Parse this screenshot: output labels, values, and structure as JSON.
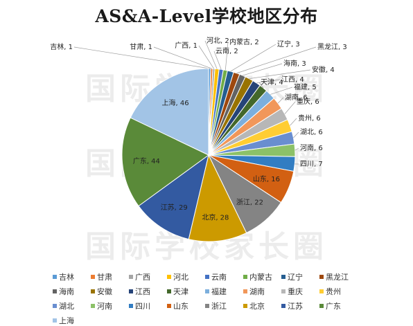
{
  "chart_data": {
    "type": "pie",
    "title": "AS&A-Level学校地区分布",
    "start_angle_deg": 0,
    "direction": "clockwise",
    "legend_position": "bottom",
    "slices": [
      {
        "name": "吉林",
        "value": 1,
        "color": "#5B9BD5"
      },
      {
        "name": "甘肃",
        "value": 1,
        "color": "#ED7D31"
      },
      {
        "name": "广西",
        "value": 1,
        "color": "#A5A5A5"
      },
      {
        "name": "河北",
        "value": 2,
        "color": "#FFC000"
      },
      {
        "name": "云南",
        "value": 2,
        "color": "#4472C4"
      },
      {
        "name": "内蒙古",
        "value": 2,
        "color": "#70AD47"
      },
      {
        "name": "辽宁",
        "value": 3,
        "color": "#255E91"
      },
      {
        "name": "黑龙江",
        "value": 3,
        "color": "#9E480E"
      },
      {
        "name": "海南",
        "value": 3,
        "color": "#636363"
      },
      {
        "name": "安徽",
        "value": 4,
        "color": "#997300"
      },
      {
        "name": "江西",
        "value": 4,
        "color": "#264478"
      },
      {
        "name": "天津",
        "value": 4,
        "color": "#43682B"
      },
      {
        "name": "福建",
        "value": 5,
        "color": "#7CAFDD"
      },
      {
        "name": "湖南",
        "value": 6,
        "color": "#F1975A"
      },
      {
        "name": "重庆",
        "value": 6,
        "color": "#B7B7B7"
      },
      {
        "name": "贵州",
        "value": 6,
        "color": "#FFCD33"
      },
      {
        "name": "湖北",
        "value": 6,
        "color": "#698ED0"
      },
      {
        "name": "河南",
        "value": 6,
        "color": "#8CC168"
      },
      {
        "name": "四川",
        "value": 7,
        "color": "#327DC2"
      },
      {
        "name": "山东",
        "value": 16,
        "color": "#D26012"
      },
      {
        "name": "浙江",
        "value": 22,
        "color": "#848484"
      },
      {
        "name": "北京",
        "value": 28,
        "color": "#CC9A00"
      },
      {
        "name": "江苏",
        "value": 29,
        "color": "#335AA1"
      },
      {
        "name": "广东",
        "value": 44,
        "color": "#5A8A39"
      },
      {
        "name": "上海",
        "value": 46,
        "color": "#A2C4E6"
      }
    ]
  },
  "watermark_text": "国际学校家长圈"
}
